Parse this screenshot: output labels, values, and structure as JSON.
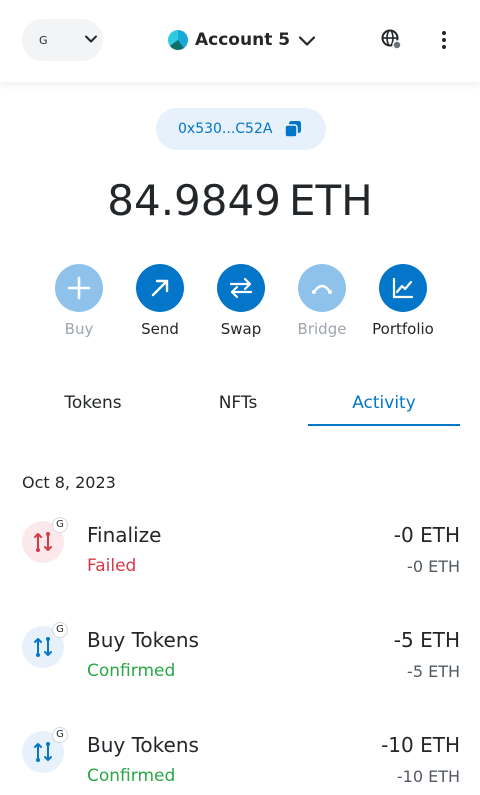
{
  "header": {
    "network_letter": "G",
    "account_name": "Account 5",
    "icons": [
      "chevron-down-icon",
      "globe-icon",
      "kebab-menu-icon"
    ]
  },
  "address": {
    "short": "0x530...C52A"
  },
  "balance": {
    "amount": "84.9849",
    "unit": "ETH"
  },
  "actions": [
    {
      "label": "Buy",
      "icon": "plus-icon",
      "enabled": false
    },
    {
      "label": "Send",
      "icon": "arrow-up-right-icon",
      "enabled": true
    },
    {
      "label": "Swap",
      "icon": "swap-arrows-icon",
      "enabled": true
    },
    {
      "label": "Bridge",
      "icon": "bridge-icon",
      "enabled": false
    },
    {
      "label": "Portfolio",
      "icon": "chart-line-icon",
      "enabled": true
    }
  ],
  "tabs": [
    {
      "label": "Tokens",
      "active": false
    },
    {
      "label": "NFTs",
      "active": false
    },
    {
      "label": "Activity",
      "active": true
    }
  ],
  "activity": {
    "date": "Oct 8, 2023",
    "transactions": [
      {
        "title": "Finalize",
        "status": "Failed",
        "amount": "-0 ETH",
        "sub_amount": "-0 ETH",
        "badge": "G",
        "tone": "failed"
      },
      {
        "title": "Buy Tokens",
        "status": "Confirmed",
        "amount": "-5 ETH",
        "sub_amount": "-5 ETH",
        "badge": "G",
        "tone": "confirmed"
      },
      {
        "title": "Buy Tokens",
        "status": "Confirmed",
        "amount": "-10 ETH",
        "sub_amount": "-10 ETH",
        "badge": "G",
        "tone": "confirmed"
      }
    ]
  },
  "colors": {
    "primary": "#0376c9",
    "primary_muted": "#8fc2ea",
    "failed": "#d73847",
    "confirmed": "#28a745"
  }
}
